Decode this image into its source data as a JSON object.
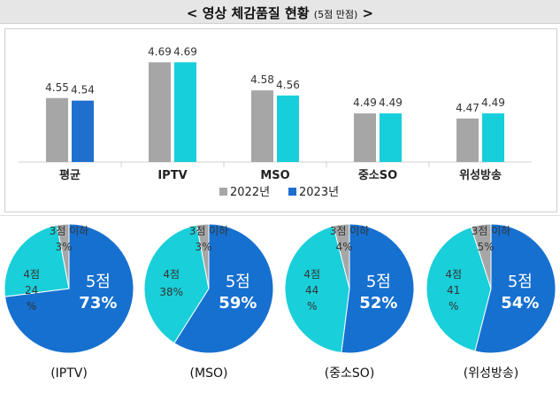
{
  "header": {
    "title": "< 영상 체감품질 현황",
    "subtitle": "(5점 만점)",
    "close": ">"
  },
  "colors": {
    "s2022": "#a6a6a6",
    "s2023": "#17cfdb",
    "bar2023_first": "#1f6fcf",
    "pie_5": "#1670d0",
    "pie_4": "#19cfd9",
    "pie_3": "#a6a6a6"
  },
  "chart_data": [
    {
      "type": "bar",
      "categories": [
        "평균",
        "IPTV",
        "MSO",
        "중소SO",
        "위성방송"
      ],
      "series": [
        {
          "name": "2022년",
          "values": [
            4.55,
            4.69,
            4.58,
            4.49,
            4.47
          ]
        },
        {
          "name": "2023년",
          "values": [
            4.54,
            4.69,
            4.56,
            4.49,
            4.49
          ]
        }
      ],
      "ylim": [
        4.3,
        4.75
      ],
      "legend": "bottom",
      "grid": false
    },
    {
      "type": "pie",
      "label": "(IPTV)",
      "slices": [
        {
          "name": "5점",
          "value": 73,
          "text": "73%"
        },
        {
          "name": "4점",
          "value": 24,
          "text": "24 %"
        },
        {
          "name": "3점 이하",
          "value": 3,
          "text": "3%"
        }
      ]
    },
    {
      "type": "pie",
      "label": "(MSO)",
      "slices": [
        {
          "name": "5점",
          "value": 59,
          "text": "59%"
        },
        {
          "name": "4점",
          "value": 38,
          "text": "38%"
        },
        {
          "name": "3점 이하",
          "value": 3,
          "text": "3%"
        }
      ]
    },
    {
      "type": "pie",
      "label": "(중소SO)",
      "slices": [
        {
          "name": "5점",
          "value": 52,
          "text": "52%"
        },
        {
          "name": "4점",
          "value": 44,
          "text": "44 %"
        },
        {
          "name": "3점 이하",
          "value": 4,
          "text": "4%"
        }
      ]
    },
    {
      "type": "pie",
      "label": "(위성방송)",
      "slices": [
        {
          "name": "5점",
          "value": 54,
          "text": "54%"
        },
        {
          "name": "4점",
          "value": 41,
          "text": "41 %"
        },
        {
          "name": "3점 이하",
          "value": 5,
          "text": "5%"
        }
      ]
    }
  ]
}
